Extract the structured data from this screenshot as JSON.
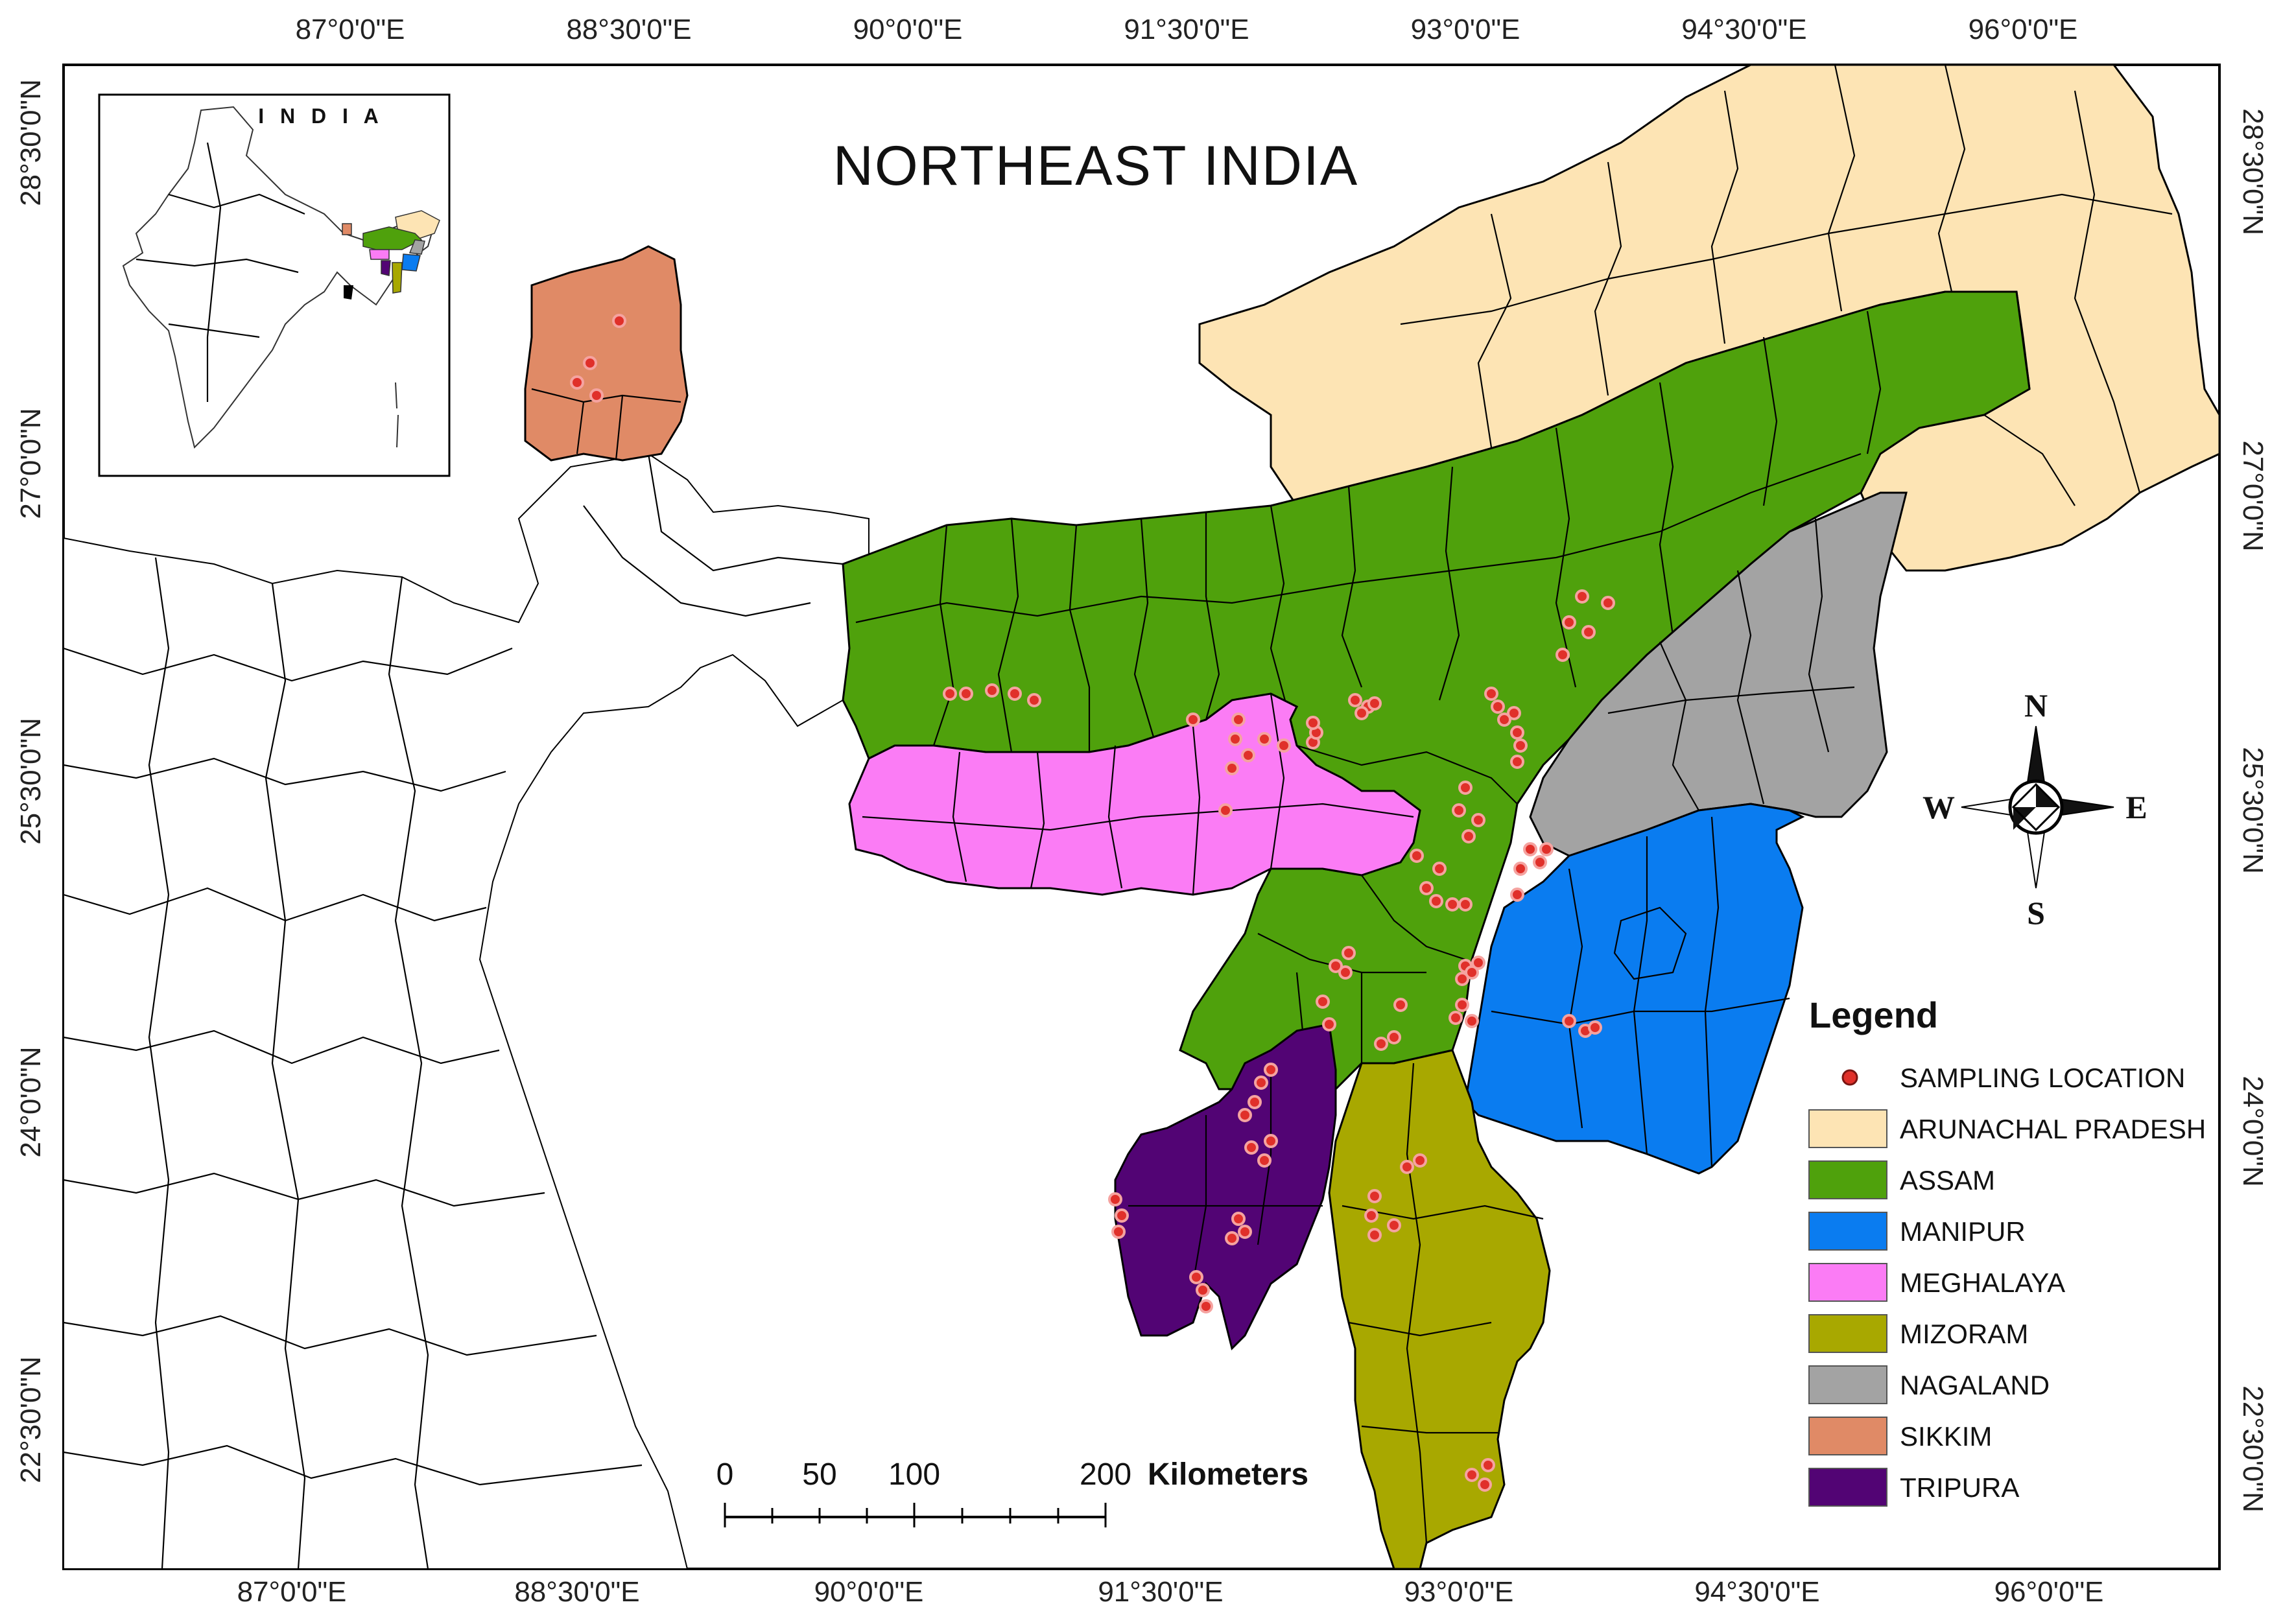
{
  "title": "NORTHEAST  INDIA",
  "inset": {
    "title": "I N D I A"
  },
  "graticule": {
    "top": [
      "87°0'0\"E",
      "88°30'0\"E",
      "90°0'0\"E",
      "91°30'0\"E",
      "93°0'0\"E",
      "94°30'0\"E",
      "96°0'0\"E"
    ],
    "bottom": [
      "87°0'0\"E",
      "88°30'0\"E",
      "90°0'0\"E",
      "91°30'0\"E",
      "93°0'0\"E",
      "94°30'0\"E",
      "96°0'0\"E"
    ],
    "left": [
      "28°30'0\"N",
      "27°0'0\"N",
      "25°30'0\"N",
      "24°0'0\"N",
      "22°30'0\"N"
    ],
    "right": [
      "28°30'0\"N",
      "27°0'0\"N",
      "25°30'0\"N",
      "24°0'0\"N",
      "22°30'0\"N"
    ]
  },
  "compass": {
    "n": "N",
    "s": "S",
    "e": "E",
    "w": "W"
  },
  "scale_bar": {
    "ticks": [
      "0",
      "50",
      "100",
      "200"
    ],
    "unit": "Kilometers"
  },
  "legend": {
    "title": "Legend",
    "items": [
      {
        "label": "SAMPLING LOCATION",
        "color": "#e0302a",
        "kind": "point"
      },
      {
        "label": "ARUNACHAL PRADESH",
        "color": "#fde4b4",
        "kind": "area"
      },
      {
        "label": "ASSAM",
        "color": "#4fa10c",
        "kind": "area"
      },
      {
        "label": "MANIPUR",
        "color": "#0a7cf0",
        "kind": "area"
      },
      {
        "label": "MEGHALAYA",
        "color": "#fb7cf5",
        "kind": "area"
      },
      {
        "label": "MIZORAM",
        "color": "#a8a800",
        "kind": "area"
      },
      {
        "label": "NAGALAND",
        "color": "#a3a3a3",
        "kind": "area"
      },
      {
        "label": "SIKKIM",
        "color": "#e08a66",
        "kind": "area"
      },
      {
        "label": "TRIPURA",
        "color": "#520474",
        "kind": "area"
      }
    ]
  }
}
